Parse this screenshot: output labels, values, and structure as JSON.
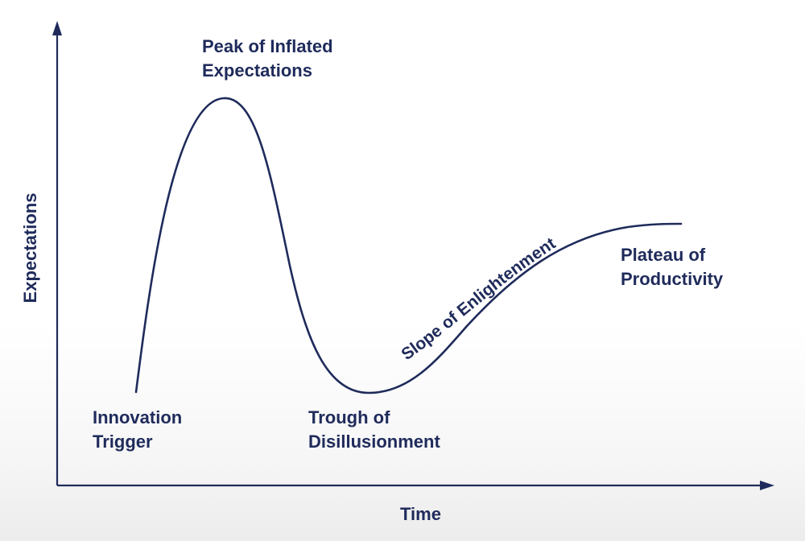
{
  "diagram": {
    "x_axis_label": "Time",
    "y_axis_label": "Expectations",
    "phases": {
      "innovation_trigger": [
        "Innovation",
        "Trigger"
      ],
      "peak": [
        "Peak of Inflated",
        "Expectations"
      ],
      "trough": [
        "Trough of",
        "Disillusionment"
      ],
      "slope": "Slope of Enlightenment",
      "plateau": [
        "Plateau of",
        "Productivity"
      ]
    },
    "colors": {
      "ink": "#1f2b5b",
      "axis": "#1f2b5b",
      "background": "#ffffff"
    }
  }
}
